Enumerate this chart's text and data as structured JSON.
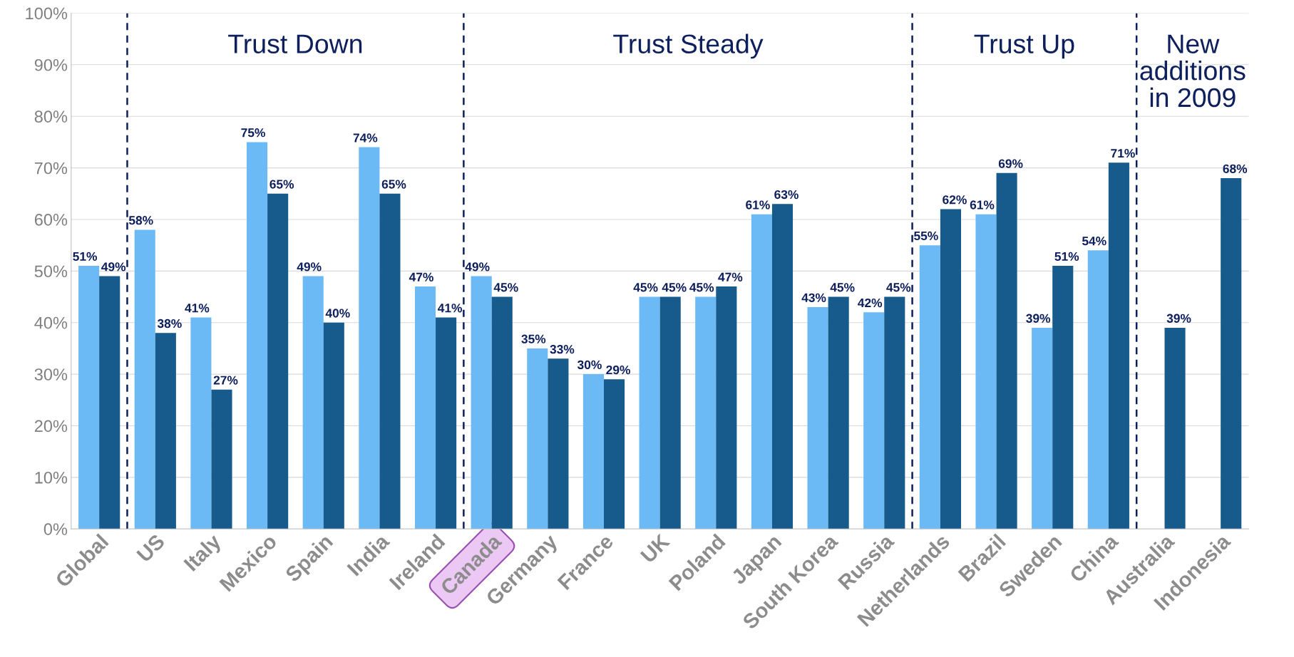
{
  "chart_data": {
    "type": "bar",
    "categories": [
      "Global",
      "US",
      "Italy",
      "Mexico",
      "Spain",
      "India",
      "Ireland",
      "Canada",
      "Germany",
      "France",
      "UK",
      "Poland",
      "Japan",
      "South Korea",
      "Russia",
      "Netherlands",
      "Brazil",
      "Sweden",
      "China",
      "Australia",
      "Indonesia"
    ],
    "series": [
      {
        "color": "#6cbaf5",
        "values": [
          51,
          58,
          41,
          75,
          49,
          74,
          47,
          49,
          35,
          30,
          45,
          45,
          61,
          43,
          42,
          55,
          61,
          39,
          54,
          null,
          null
        ],
        "value_labels": [
          "51%",
          "58%",
          "41%",
          "75%",
          "49%",
          "74%",
          "47%",
          "49%",
          "35%",
          "30%",
          "45%",
          "45%",
          "61%",
          "43%",
          "42%",
          "55%",
          "61%",
          "39%",
          "54%",
          null,
          null
        ]
      },
      {
        "color": "#175a8c",
        "values": [
          49,
          38,
          27,
          65,
          40,
          65,
          41,
          45,
          33,
          29,
          45,
          47,
          63,
          45,
          45,
          62,
          69,
          51,
          71,
          39,
          68
        ],
        "value_labels": [
          "49%",
          "38%",
          "27%",
          "65%",
          "40%",
          "65%",
          "41%",
          "45%",
          "33%",
          "29%",
          "45%",
          "47%",
          "63%",
          "45%",
          "45%",
          "62%",
          "69%",
          "51%",
          "71%",
          "39%",
          "68%"
        ]
      }
    ],
    "ylim": [
      0,
      100
    ],
    "yticks": [
      {
        "value": 0,
        "label": "0%"
      },
      {
        "value": 10,
        "label": "10%"
      },
      {
        "value": 20,
        "label": "20%"
      },
      {
        "value": 30,
        "label": "30%"
      },
      {
        "value": 40,
        "label": "40%"
      },
      {
        "value": 50,
        "label": "50%"
      },
      {
        "value": 60,
        "label": "60%"
      },
      {
        "value": 70,
        "label": "70%"
      },
      {
        "value": 80,
        "label": "80%"
      },
      {
        "value": 90,
        "label": "90%"
      },
      {
        "value": 100,
        "label": "100%"
      }
    ],
    "grid": "y",
    "legend": false,
    "annotations": [
      "Trust Down",
      "Trust Steady",
      "Trust Up",
      "New\nadditions\nin 2009"
    ]
  }
}
